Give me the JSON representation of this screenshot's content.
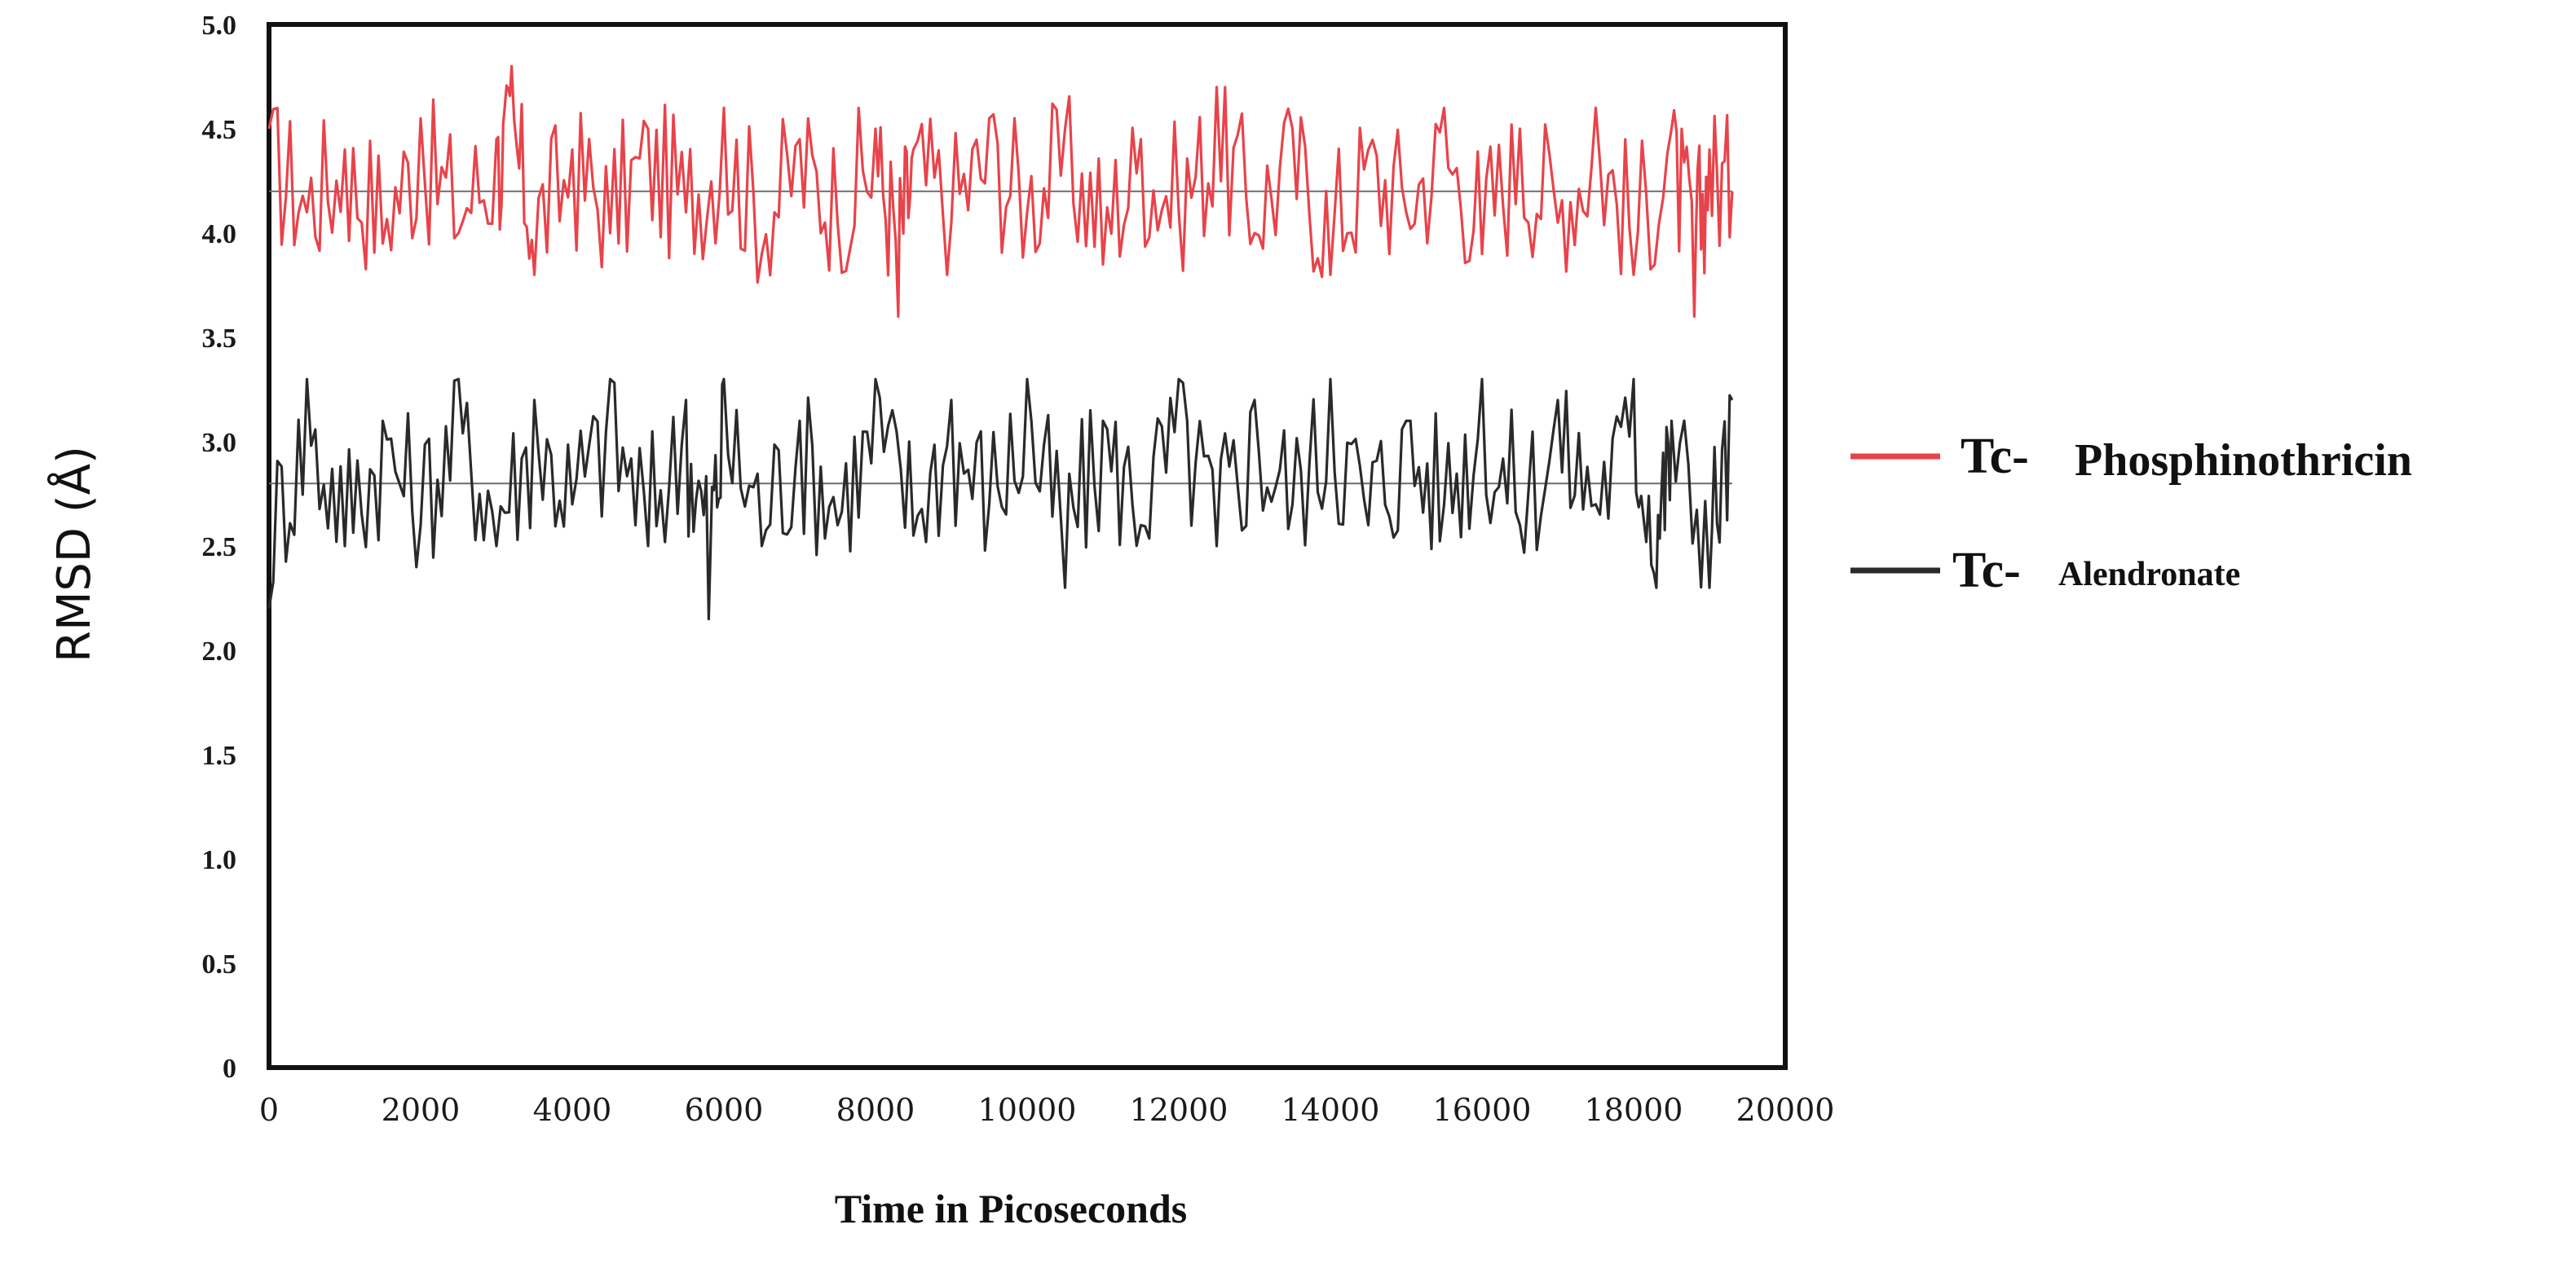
{
  "chart_data": {
    "type": "line",
    "title": "",
    "xlabel": "Time in Picoseconds",
    "ylabel": "RMSD (Å)",
    "xlim": [
      0,
      20000
    ],
    "ylim": [
      0,
      5.0
    ],
    "xticks": [
      "0",
      "2000",
      "4000",
      "6000",
      "8000",
      "10000",
      "12000",
      "14000",
      "16000",
      "18000",
      "20000"
    ],
    "yticks": [
      "0",
      "0.5",
      "1.0",
      "1.5",
      "2.0",
      "2.5",
      "3.0",
      "3.5",
      "4.0",
      "4.5",
      "5.0"
    ],
    "grid": false,
    "legend_position": "right",
    "series": [
      {
        "name": "Tc-Phosphinothricin",
        "prefix": "Tc-",
        "label": "Phosphinothricin",
        "color": "#e8434a",
        "mean": 4.2,
        "x": [
          0,
          500,
          1000,
          1500,
          2000,
          2500,
          3000,
          3200,
          3500,
          4000,
          4500,
          5000,
          5500,
          6000,
          6500,
          7000,
          7500,
          8000,
          8300,
          8500,
          9000,
          9500,
          10000,
          10500,
          11000,
          11500,
          12000,
          12500,
          13000,
          13500,
          14000,
          14500,
          15000,
          15500,
          16000,
          16500,
          17000,
          17500,
          18000,
          18500,
          18800,
          19000,
          19300
        ],
        "values": [
          4.5,
          4.1,
          4.4,
          3.95,
          4.55,
          4.0,
          4.45,
          4.8,
          3.8,
          4.4,
          4.0,
          4.5,
          4.1,
          4.6,
          3.9,
          4.45,
          4.05,
          4.5,
          3.6,
          4.4,
          4.05,
          4.55,
          4.1,
          4.5,
          3.85,
          4.45,
          4.1,
          4.7,
          4.0,
          4.5,
          3.8,
          4.4,
          4.1,
          4.6,
          3.9,
          4.5,
          4.05,
          4.6,
          3.8,
          4.5,
          3.6,
          4.4,
          4.2
        ]
      },
      {
        "name": "Tc-Alendronate",
        "prefix": "Tc-",
        "label": "Alendronate",
        "color": "#2a2a2a",
        "mean": 2.8,
        "x": [
          0,
          500,
          1000,
          1500,
          2000,
          2500,
          3000,
          3500,
          4000,
          4500,
          5000,
          5500,
          5800,
          6000,
          6500,
          7000,
          7500,
          8000,
          8500,
          9000,
          9500,
          10000,
          10500,
          11000,
          11500,
          12000,
          12500,
          13000,
          13500,
          14000,
          14500,
          15000,
          15500,
          16000,
          16500,
          17000,
          17500,
          18000,
          18300,
          18500,
          19000,
          19300
        ],
        "values": [
          2.2,
          3.3,
          2.5,
          3.1,
          2.6,
          3.3,
          2.5,
          3.2,
          2.7,
          3.3,
          2.5,
          3.2,
          2.15,
          3.3,
          2.5,
          3.1,
          2.6,
          3.3,
          2.55,
          3.2,
          2.7,
          3.3,
          2.3,
          3.1,
          2.6,
          3.3,
          2.5,
          3.2,
          2.7,
          3.3,
          2.6,
          3.1,
          2.7,
          3.3,
          2.6,
          3.2,
          2.7,
          3.3,
          2.3,
          3.1,
          2.3,
          3.2
        ]
      }
    ]
  }
}
